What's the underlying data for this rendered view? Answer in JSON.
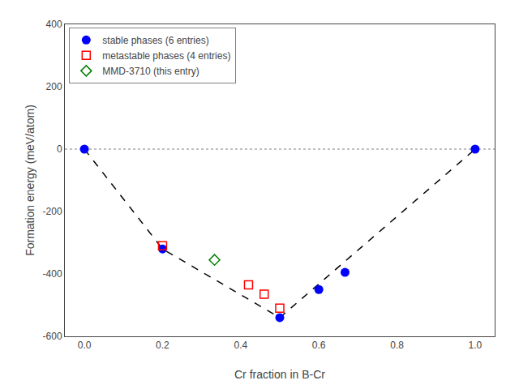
{
  "chart_data": {
    "type": "scatter",
    "xlabel": "Cr fraction in B-Cr",
    "ylabel": "Formation energy (meV/atom)",
    "xlim": [
      -0.05,
      1.05
    ],
    "ylim": [
      -600,
      400
    ],
    "xticks": [
      {
        "value": 0.0,
        "label": "0.0"
      },
      0.2,
      0.4,
      0.6,
      0.8,
      {
        "value": 1.0,
        "label": "1.0"
      }
    ],
    "yticks": [
      -600,
      -400,
      -200,
      0,
      200,
      400
    ],
    "grid": false,
    "legend": "upper left",
    "reference_lines": [
      {
        "y": 0,
        "color": "gray",
        "line_style": "dotted"
      }
    ],
    "series": [
      {
        "type": "line",
        "color": "black",
        "line_style": "dashed",
        "x": [
          0.0,
          0.2,
          0.5,
          1.0
        ],
        "values": [
          0,
          -320,
          -540,
          0
        ]
      },
      {
        "name": "stable phases (6 entries)",
        "type": "scatter",
        "color": "blue",
        "marker": "circle",
        "x": [
          0.0,
          0.2,
          0.5,
          0.6,
          0.667,
          1.0
        ],
        "values": [
          0,
          -320,
          -540,
          -450,
          -395,
          0
        ]
      },
      {
        "name": "metastable phases (4 entries)",
        "type": "scatter",
        "color": "red",
        "marker": "square-open",
        "x": [
          0.2,
          0.42,
          0.46,
          0.5
        ],
        "values": [
          -310,
          -435,
          -465,
          -510
        ]
      },
      {
        "name": "MMD-3710 (this entry)",
        "type": "scatter",
        "color": "green",
        "marker": "diamond-open",
        "x": [
          0.333
        ],
        "values": [
          -355
        ]
      }
    ]
  }
}
